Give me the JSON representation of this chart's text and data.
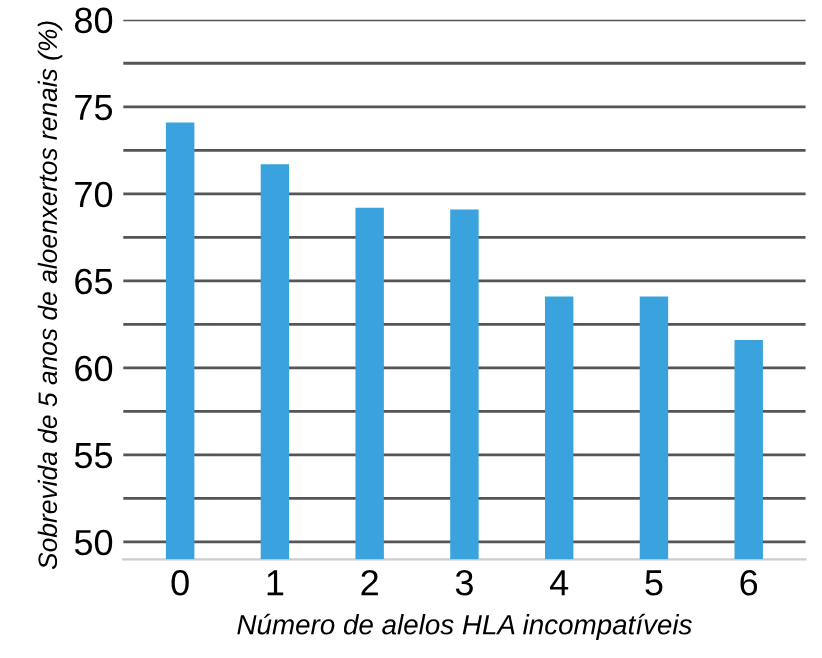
{
  "chart_data": {
    "type": "bar",
    "xlabel": "Número de alelos HLA incompatíveis",
    "ylabel": "Sobrevida de 5 anos de aloenxertos renais (%)",
    "categories": [
      "0",
      "1",
      "2",
      "3",
      "4",
      "5",
      "6"
    ],
    "values": [
      74.1,
      71.7,
      69.2,
      69.1,
      64.1,
      64.1,
      61.6
    ],
    "color": "#3aa3de",
    "ylim": [
      49,
      80
    ],
    "yticks": [
      50,
      {
        "value": 52.5,
        "label": null
      },
      55,
      {
        "value": 57.5,
        "label": null
      },
      60,
      {
        "value": 62.5,
        "label": null
      },
      65,
      {
        "value": 67.5,
        "label": null
      },
      70,
      {
        "value": 72.5,
        "label": null
      },
      75,
      {
        "value": 77.5,
        "label": null
      },
      80
    ],
    "grid": "y"
  }
}
